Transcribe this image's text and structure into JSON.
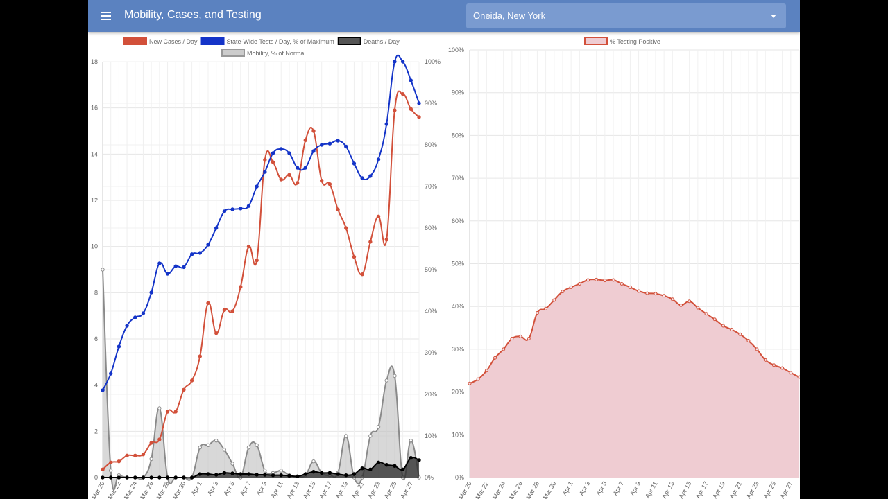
{
  "header": {
    "title": "Mobility, Cases, and Testing",
    "location": "Oneida, New York",
    "menu_icon": "menu-icon",
    "dropdown_icon": "caret-down-icon"
  },
  "colors": {
    "header_bg": "#5b82c0",
    "cases": "#d2503a",
    "tests": "#1434c8",
    "deaths": "#000000",
    "mobility": "#999999",
    "positive": "#d2503a",
    "positive_fill": "#efccd2"
  },
  "chart_data": [
    {
      "type": "line",
      "categories": [
        "Mar 20",
        "Mar 21",
        "Mar 22",
        "Mar 23",
        "Mar 24",
        "Mar 25",
        "Mar 26",
        "Mar 27",
        "Mar 28",
        "Mar 29",
        "Mar 30",
        "Mar 31",
        "Apr 1",
        "Apr 2",
        "Apr 3",
        "Apr 4",
        "Apr 5",
        "Apr 6",
        "Apr 7",
        "Apr 8",
        "Apr 9",
        "Apr 10",
        "Apr 11",
        "Apr 12",
        "Apr 13",
        "Apr 14",
        "Apr 15",
        "Apr 16",
        "Apr 17",
        "Apr 18",
        "Apr 19",
        "Apr 20",
        "Apr 21",
        "Apr 22",
        "Apr 23",
        "Apr 24",
        "Apr 25",
        "Apr 26",
        "Apr 27",
        "Apr 28"
      ],
      "tick_labels": [
        "Mar 20",
        "Mar 22",
        "Mar 24",
        "Mar 26",
        "Mar 28",
        "Mar 30",
        "Apr 1",
        "Apr 3",
        "Apr 5",
        "Apr 7",
        "Apr 9",
        "Apr 11",
        "Apr 13",
        "Apr 15",
        "Apr 17",
        "Apr 19",
        "Apr 21",
        "Apr 23",
        "Apr 25",
        "Apr 27"
      ],
      "y_left_range": [
        0,
        18
      ],
      "y_left_ticks": [
        "0",
        "2",
        "4",
        "6",
        "8",
        "10",
        "12",
        "14",
        "16",
        "18"
      ],
      "y_right_range": [
        0,
        100
      ],
      "y_right_ticks": [
        "0%",
        "10%",
        "20%",
        "30%",
        "40%",
        "50%",
        "60%",
        "70%",
        "80%",
        "90%",
        "100%"
      ],
      "legend": [
        {
          "name": "New Cases / Day",
          "color": "#d2503a"
        },
        {
          "name": "State-Wide Tests / Day, % of Maximum",
          "color": "#1434c8"
        },
        {
          "name": "Deaths / Day",
          "color": "#555555"
        },
        {
          "name": "Mobility, % of Normal",
          "color": "#cccccc"
        }
      ],
      "series": [
        {
          "name": "New Cases / Day",
          "axis": "left",
          "values": [
            0.35,
            0.65,
            0.7,
            0.95,
            0.95,
            1.0,
            1.5,
            1.65,
            2.85,
            2.85,
            3.8,
            4.2,
            5.25,
            7.55,
            6.25,
            7.25,
            7.2,
            8.25,
            10.0,
            9.4,
            13.75,
            13.65,
            12.9,
            13.1,
            12.75,
            14.6,
            15.0,
            12.85,
            12.7,
            11.6,
            10.8,
            9.55,
            8.8,
            10.2,
            11.3,
            10.3,
            15.9,
            16.6,
            15.95,
            15.6
          ]
        },
        {
          "name": "State-Wide Tests / Day, % of Maximum",
          "axis": "right",
          "values": [
            21,
            25,
            31.5,
            36.5,
            38.5,
            39.5,
            44.5,
            51.5,
            49,
            50.8,
            50.6,
            53.7,
            54,
            56,
            60,
            64,
            64.5,
            64.7,
            65.3,
            70,
            73.5,
            78,
            79,
            78,
            74.5,
            74.5,
            78.5,
            80,
            80.3,
            81,
            79.6,
            75.5,
            72,
            72.5,
            76.5,
            85,
            100,
            100,
            95.5,
            90
          ]
        },
        {
          "name": "Deaths / Day",
          "axis": "left",
          "values": [
            0,
            0,
            0,
            0,
            0,
            0,
            0,
            0,
            0,
            0,
            0,
            0,
            0.15,
            0.15,
            0.12,
            0.2,
            0.18,
            0.15,
            0.15,
            0.12,
            0.12,
            0.1,
            0.1,
            0.08,
            0.05,
            0.15,
            0.25,
            0.2,
            0.2,
            0.15,
            0.1,
            0.15,
            0.4,
            0.35,
            0.65,
            0.55,
            0.5,
            0.35,
            0.85,
            0.75
          ]
        },
        {
          "name": "Mobility, % of Normal",
          "axis": "left",
          "values": [
            9.0,
            0.3,
            0.1,
            0,
            0,
            0,
            0.8,
            3.0,
            0,
            0,
            0,
            0,
            1.3,
            1.4,
            1.6,
            1.2,
            0.6,
            0,
            1.3,
            1.4,
            0.3,
            0.2,
            0.3,
            0.1,
            0.05,
            0.1,
            0.7,
            0.2,
            0.1,
            0.2,
            1.8,
            0,
            0,
            1.8,
            2.2,
            4.2,
            4.4,
            0,
            1.6,
            0
          ]
        }
      ]
    },
    {
      "type": "area",
      "categories": [
        "Mar 20",
        "Mar 21",
        "Mar 22",
        "Mar 23",
        "Mar 24",
        "Mar 25",
        "Mar 26",
        "Mar 27",
        "Mar 28",
        "Mar 29",
        "Mar 30",
        "Mar 31",
        "Apr 1",
        "Apr 2",
        "Apr 3",
        "Apr 4",
        "Apr 5",
        "Apr 6",
        "Apr 7",
        "Apr 8",
        "Apr 9",
        "Apr 10",
        "Apr 11",
        "Apr 12",
        "Apr 13",
        "Apr 14",
        "Apr 15",
        "Apr 16",
        "Apr 17",
        "Apr 18",
        "Apr 19",
        "Apr 20",
        "Apr 21",
        "Apr 22",
        "Apr 23",
        "Apr 24",
        "Apr 25",
        "Apr 26",
        "Apr 27",
        "Apr 28"
      ],
      "tick_labels": [
        "Mar 20",
        "Mar 22",
        "Mar 24",
        "Mar 26",
        "Mar 28",
        "Mar 30",
        "Apr 1",
        "Apr 3",
        "Apr 5",
        "Apr 7",
        "Apr 9",
        "Apr 11",
        "Apr 13",
        "Apr 15",
        "Apr 17",
        "Apr 19",
        "Apr 21",
        "Apr 23",
        "Apr 25",
        "Apr 27"
      ],
      "y_range": [
        0,
        100
      ],
      "y_ticks": [
        "0%",
        "10%",
        "20%",
        "30%",
        "40%",
        "50%",
        "60%",
        "70%",
        "80%",
        "90%",
        "100%"
      ],
      "legend": [
        {
          "name": "% Testing Positive",
          "color": "#efccd2"
        }
      ],
      "series": [
        {
          "name": "% Testing Positive",
          "values": [
            22,
            23,
            25,
            28,
            30,
            32.5,
            33,
            32.5,
            38.5,
            39.5,
            41.5,
            43.5,
            44.5,
            45.3,
            46.2,
            46.3,
            46.1,
            46.2,
            45.3,
            44.5,
            43.6,
            43.1,
            43.0,
            42.5,
            41.7,
            40.3,
            41.2,
            39.7,
            38.3,
            37.0,
            35.5,
            34.6,
            33.5,
            32.0,
            30.0,
            27.5,
            26.3,
            25.6,
            24.5,
            23.5
          ]
        }
      ]
    }
  ]
}
